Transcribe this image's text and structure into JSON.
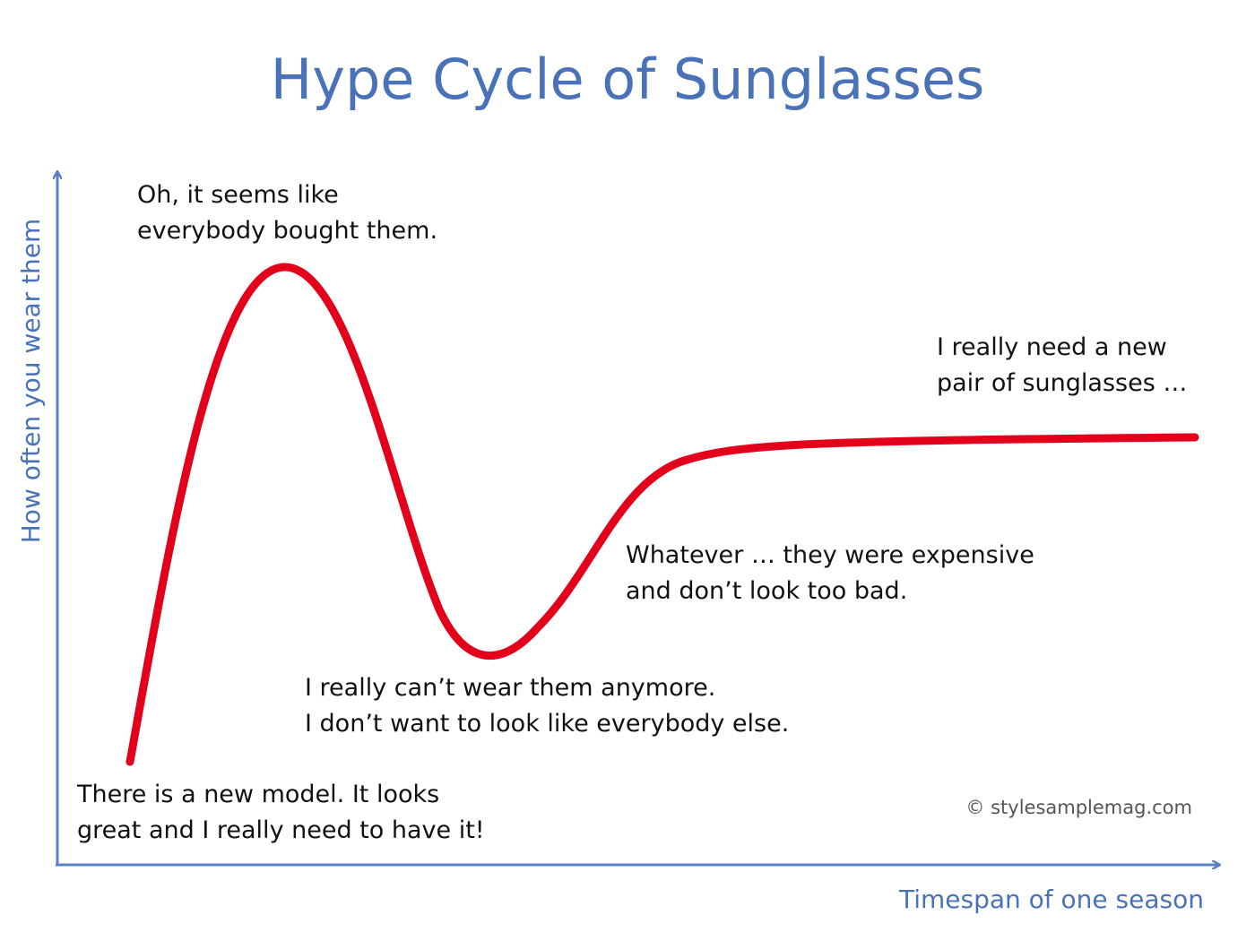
{
  "title": "Hype Cycle of Sunglasses",
  "axes": {
    "y_label": "How often you wear them",
    "x_label": "Timespan of one season"
  },
  "annotations": [
    {
      "lines": [
        "Oh, it seems like",
        "everybody bought them."
      ]
    },
    {
      "lines": [
        "I really need a new",
        "pair of sunglasses …"
      ]
    },
    {
      "lines": [
        "Whatever … they were expensive",
        "and don’t look too bad."
      ]
    },
    {
      "lines": [
        "I really can’t wear them anymore.",
        "I don’t want to look like everybody else."
      ]
    },
    {
      "lines": [
        "There is a new model. It looks",
        "great and I really need to have it!"
      ]
    }
  ],
  "credit": "© stylesamplemag.com"
}
